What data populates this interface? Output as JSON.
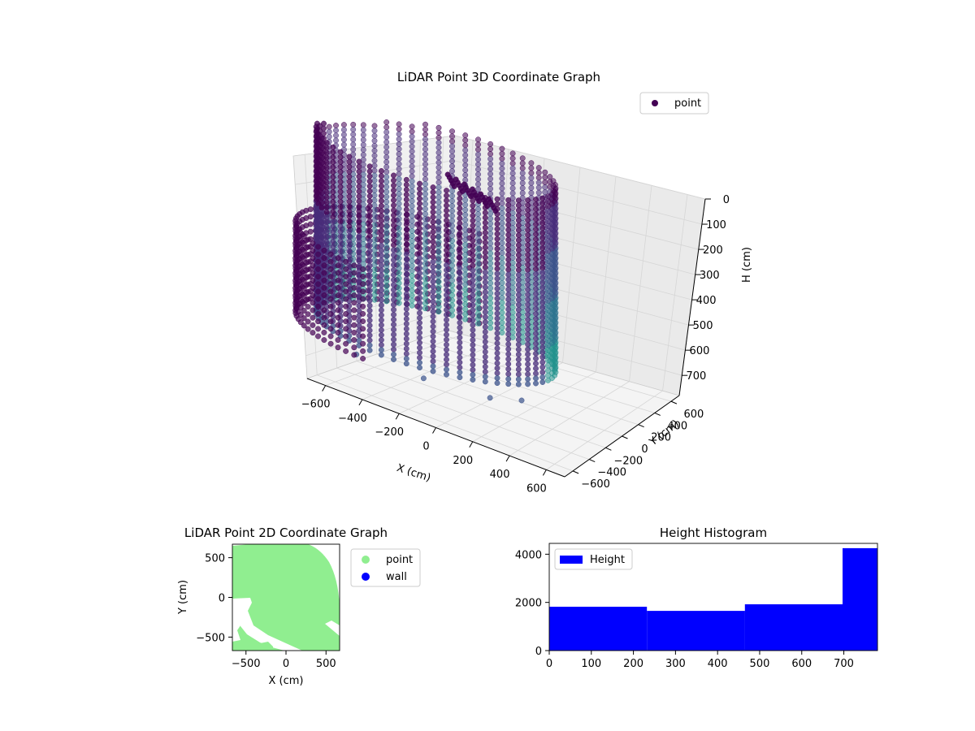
{
  "colors": {
    "point_dark": "#440154",
    "point_mid": "#3b528b",
    "point_teal": "#21918c",
    "green_points": "#90ee90",
    "wall_blue": "#0000ff",
    "hist_blue": "#0000ff"
  },
  "chart_data": [
    {
      "type": "scatter",
      "projection": "3d",
      "title": "LiDAR Point 3D Coordinate Graph",
      "xlabel": "X (cm)",
      "ylabel": "Y (cm)",
      "zlabel": "H (cm)",
      "xticks": [
        "−600",
        "−400",
        "−200",
        "0",
        "200",
        "400",
        "600"
      ],
      "yticks": [
        "−600",
        "−400",
        "−200",
        "0",
        "200",
        "400",
        "600"
      ],
      "zticks": [
        "0",
        "100",
        "200",
        "300",
        "400",
        "500",
        "600",
        "700"
      ],
      "xlim": [
        -700,
        700
      ],
      "ylim": [
        -700,
        700
      ],
      "zlim": [
        0,
        780
      ],
      "z_inverted": true,
      "legend": {
        "location": "upper right",
        "entries": [
          {
            "label": "point"
          }
        ]
      },
      "series": [
        {
          "name": "point",
          "description_of_shape": "ring of wall points (radius ~580 cm) spanning full height, plus curved outer wall segments and scattered outliers"
        }
      ]
    },
    {
      "type": "scatter",
      "title": "LiDAR Point 2D Coordinate Graph",
      "xlabel": "X (cm)",
      "ylabel": "Y (cm)",
      "xticks": [
        "−500",
        "0",
        "500"
      ],
      "yticks": [
        "−500",
        "0",
        "500"
      ],
      "xlim": [
        -670,
        670
      ],
      "ylim": [
        -670,
        670
      ],
      "legend": {
        "location": "outside right",
        "entries": [
          {
            "label": "point"
          },
          {
            "label": "wall"
          }
        ]
      }
    },
    {
      "type": "bar",
      "title": "Height Histogram",
      "legend": {
        "location": "upper left",
        "entries": [
          {
            "label": "Height"
          }
        ]
      },
      "xticks": [
        "0",
        "100",
        "200",
        "300",
        "400",
        "500",
        "600",
        "700"
      ],
      "yticks": [
        "0",
        "2000",
        "4000"
      ],
      "xlim": [
        0,
        780
      ],
      "ylim": [
        0,
        4450
      ],
      "bins": [
        {
          "x0": 0,
          "x1": 232,
          "count": 1820
        },
        {
          "x0": 232,
          "x1": 465,
          "count": 1650
        },
        {
          "x0": 465,
          "x1": 697,
          "count": 1920
        },
        {
          "x0": 697,
          "x1": 780,
          "count": 4250
        }
      ]
    }
  ]
}
